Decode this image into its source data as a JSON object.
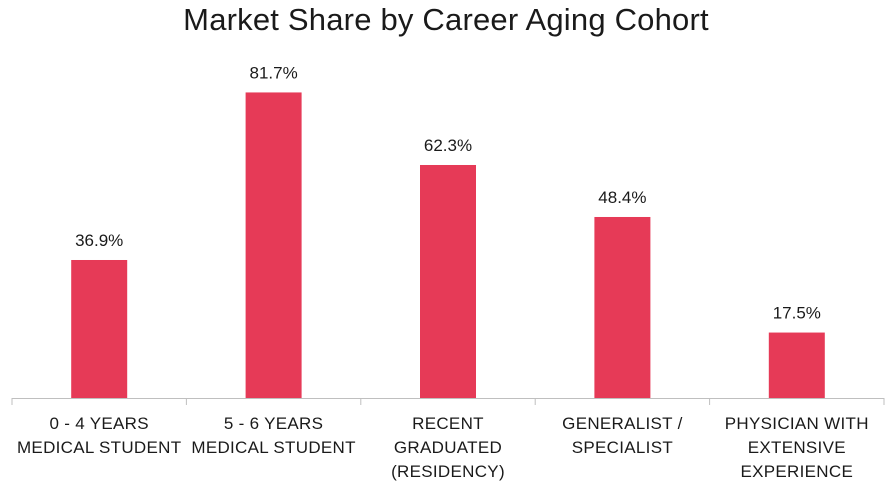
{
  "chart_data": {
    "type": "bar",
    "title": "Market Share by Career Aging Cohort",
    "categories": [
      [
        "0 - 4 YEARS",
        "MEDICAL STUDENT"
      ],
      [
        "5 - 6 YEARS",
        "MEDICAL STUDENT"
      ],
      [
        "RECENT",
        "GRADUATED",
        "(RESIDENCY)"
      ],
      [
        "GENERALIST /",
        "SPECIALIST"
      ],
      [
        "PHYSICIAN WITH",
        "EXTENSIVE",
        "EXPERIENCE"
      ]
    ],
    "values": [
      36.9,
      81.7,
      62.3,
      48.4,
      17.5
    ],
    "data_labels": [
      "36.9%",
      "81.7%",
      "62.3%",
      "48.4%",
      "17.5%"
    ],
    "ylim": [
      0,
      100
    ],
    "grid": false,
    "legend": "none",
    "bar_color": "#E63A57",
    "axis_color": "#BFBFBF"
  }
}
